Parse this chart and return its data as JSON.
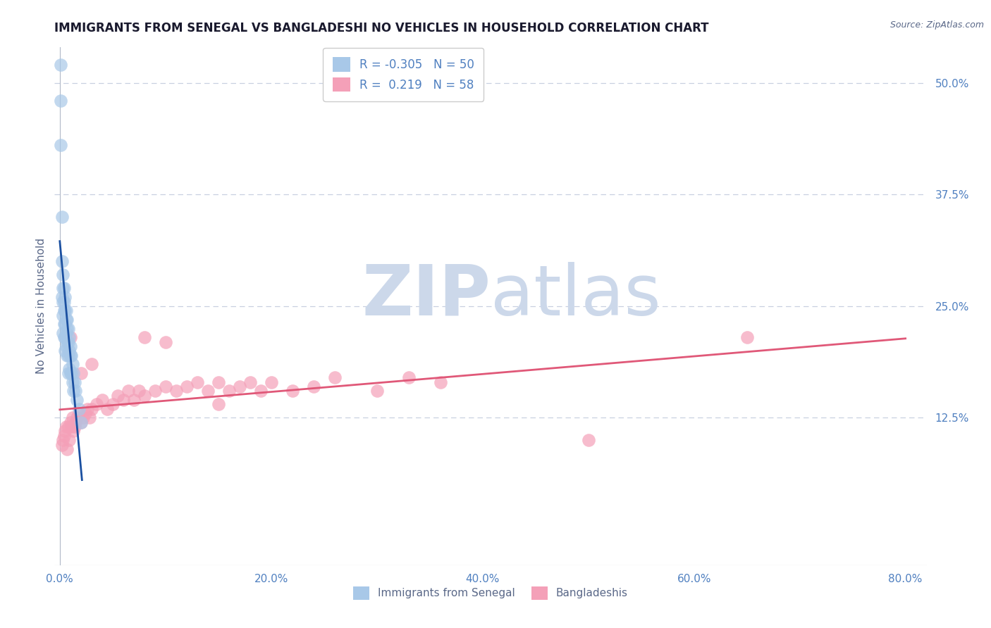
{
  "title": "IMMIGRANTS FROM SENEGAL VS BANGLADESHI NO VEHICLES IN HOUSEHOLD CORRELATION CHART",
  "source": "Source: ZipAtlas.com",
  "ylabel": "No Vehicles in Household",
  "legend1_label": "Immigrants from Senegal",
  "legend2_label": "Bangladeshis",
  "r1": -0.305,
  "n1": 50,
  "r2": 0.219,
  "n2": 58,
  "color1": "#a8c8e8",
  "color2": "#f4a0b8",
  "line1_color": "#1a4fa0",
  "line2_color": "#e05878",
  "watermark_zip": "ZIP",
  "watermark_atlas": "atlas",
  "watermark_color": "#ccd8ea",
  "xlim": [
    -0.005,
    0.82
  ],
  "ylim": [
    -0.04,
    0.54
  ],
  "xticks": [
    0.0,
    0.2,
    0.4,
    0.6,
    0.8
  ],
  "xtick_labels": [
    "0.0%",
    "20.0%",
    "40.0%",
    "60.0%",
    "80.0%"
  ],
  "yticks_right": [
    0.125,
    0.25,
    0.375,
    0.5
  ],
  "ytick_labels_right": [
    "12.5%",
    "25.0%",
    "37.5%",
    "50.0%"
  ],
  "blue_x": [
    0.001,
    0.001,
    0.002,
    0.002,
    0.002,
    0.003,
    0.003,
    0.003,
    0.003,
    0.003,
    0.004,
    0.004,
    0.004,
    0.004,
    0.004,
    0.005,
    0.005,
    0.005,
    0.005,
    0.005,
    0.006,
    0.006,
    0.006,
    0.006,
    0.007,
    0.007,
    0.007,
    0.007,
    0.008,
    0.008,
    0.008,
    0.008,
    0.009,
    0.009,
    0.009,
    0.01,
    0.01,
    0.01,
    0.011,
    0.011,
    0.012,
    0.012,
    0.013,
    0.013,
    0.014,
    0.015,
    0.016,
    0.018,
    0.02,
    0.001
  ],
  "blue_y": [
    0.48,
    0.43,
    0.35,
    0.3,
    0.26,
    0.285,
    0.27,
    0.255,
    0.24,
    0.22,
    0.27,
    0.255,
    0.245,
    0.23,
    0.215,
    0.26,
    0.245,
    0.23,
    0.215,
    0.2,
    0.245,
    0.235,
    0.22,
    0.205,
    0.235,
    0.225,
    0.21,
    0.195,
    0.225,
    0.21,
    0.195,
    0.175,
    0.215,
    0.2,
    0.18,
    0.205,
    0.195,
    0.175,
    0.195,
    0.175,
    0.185,
    0.165,
    0.175,
    0.155,
    0.165,
    0.155,
    0.145,
    0.135,
    0.12,
    0.52
  ],
  "pink_x": [
    0.002,
    0.003,
    0.004,
    0.005,
    0.006,
    0.007,
    0.008,
    0.009,
    0.01,
    0.011,
    0.012,
    0.013,
    0.014,
    0.015,
    0.016,
    0.018,
    0.02,
    0.022,
    0.024,
    0.026,
    0.028,
    0.03,
    0.035,
    0.04,
    0.045,
    0.05,
    0.055,
    0.06,
    0.065,
    0.07,
    0.075,
    0.08,
    0.09,
    0.1,
    0.11,
    0.12,
    0.13,
    0.14,
    0.15,
    0.16,
    0.17,
    0.18,
    0.19,
    0.2,
    0.22,
    0.24,
    0.26,
    0.3,
    0.33,
    0.36,
    0.5,
    0.65,
    0.01,
    0.02,
    0.03,
    0.08,
    0.1,
    0.15
  ],
  "pink_y": [
    0.095,
    0.1,
    0.105,
    0.11,
    0.115,
    0.09,
    0.115,
    0.1,
    0.12,
    0.115,
    0.125,
    0.11,
    0.115,
    0.12,
    0.125,
    0.13,
    0.12,
    0.125,
    0.13,
    0.135,
    0.125,
    0.135,
    0.14,
    0.145,
    0.135,
    0.14,
    0.15,
    0.145,
    0.155,
    0.145,
    0.155,
    0.15,
    0.155,
    0.16,
    0.155,
    0.16,
    0.165,
    0.155,
    0.165,
    0.155,
    0.16,
    0.165,
    0.155,
    0.165,
    0.155,
    0.16,
    0.17,
    0.155,
    0.17,
    0.165,
    0.1,
    0.215,
    0.215,
    0.175,
    0.185,
    0.215,
    0.21,
    0.14
  ],
  "title_color": "#1a1a2e",
  "axis_label_color": "#5a6888",
  "tick_label_color": "#5080c0",
  "grid_color": "#c8d0e0",
  "bg_color": "#ffffff"
}
